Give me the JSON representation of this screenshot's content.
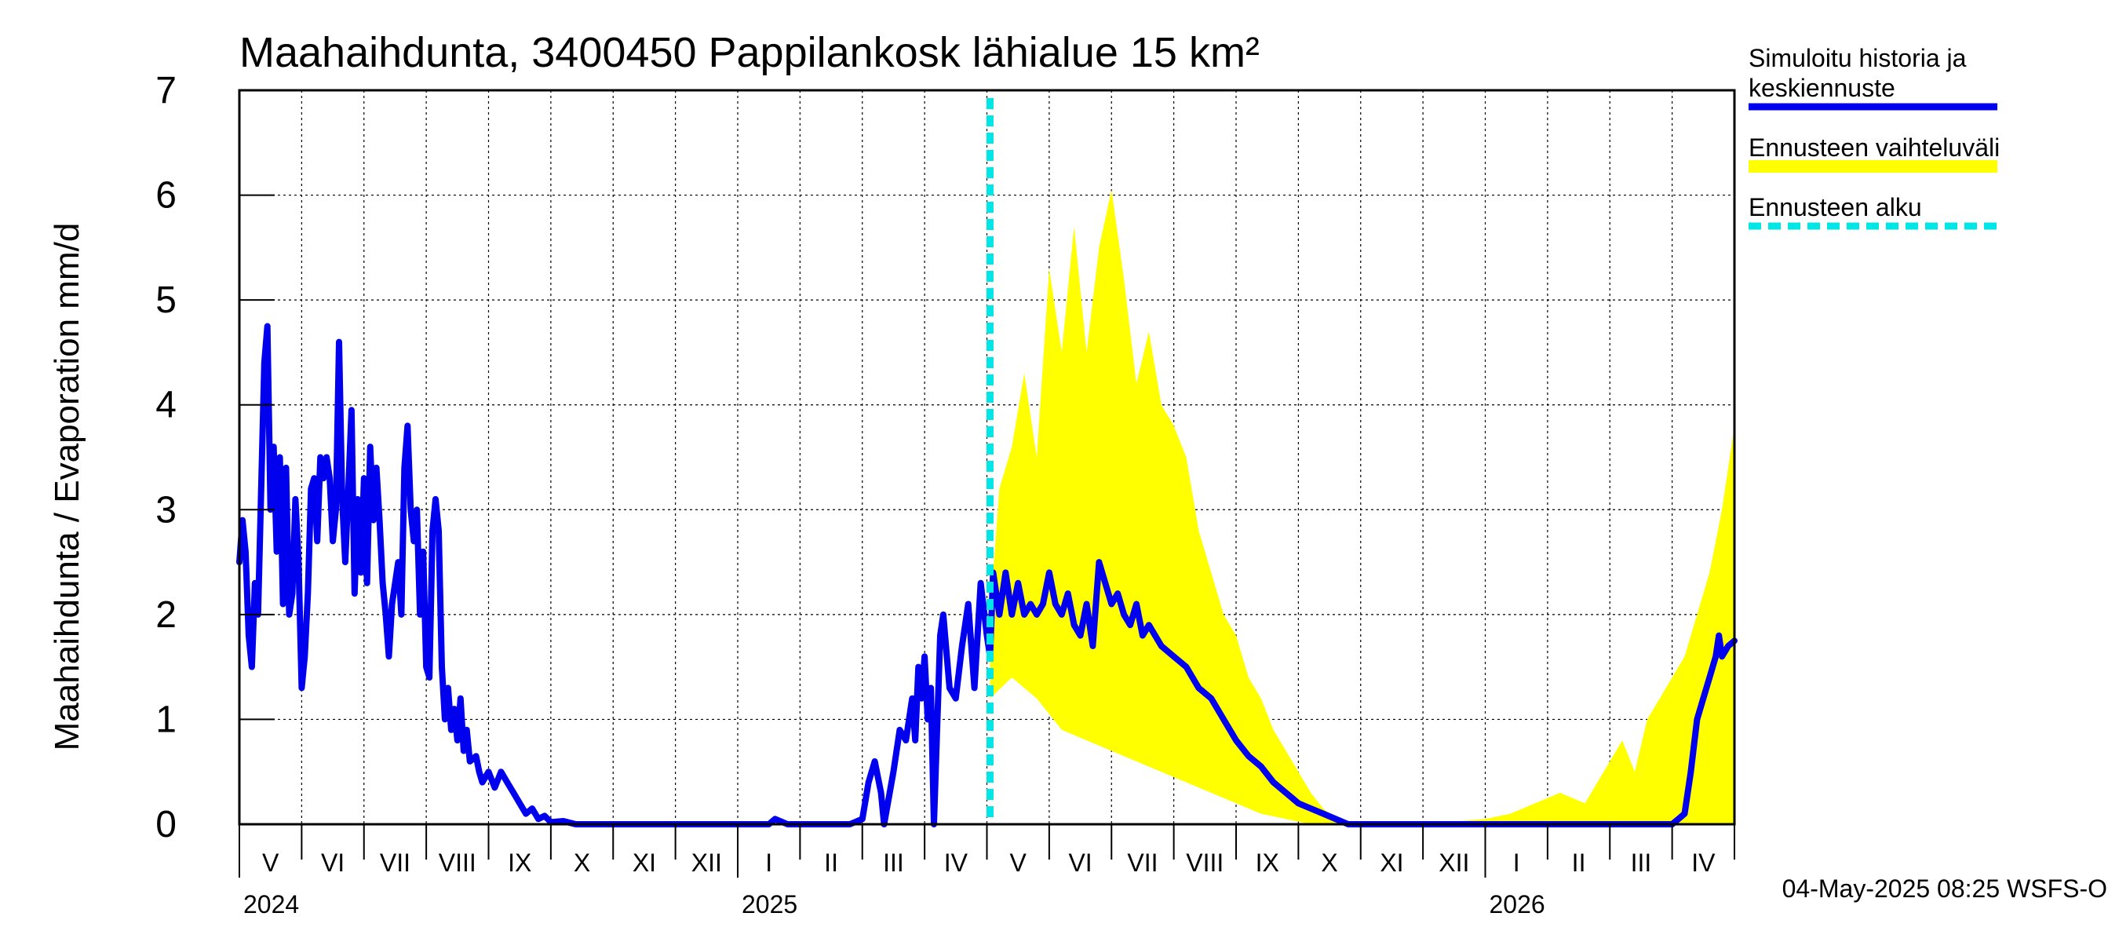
{
  "chart_data": {
    "type": "area",
    "title": "Maahaihdunta, 3400450 Pappilankosk lähialue 15 km²",
    "ylabel": "Maahaihdunta / Evaporation   mm/d",
    "ylim": [
      0,
      7
    ],
    "yticks": [
      "0",
      "1",
      "2",
      "3",
      "4",
      "5",
      "6",
      "7"
    ],
    "x_months": [
      "V",
      "VI",
      "VII",
      "VIII",
      "IX",
      "X",
      "XI",
      "XII",
      "I",
      "II",
      "III",
      "IV",
      "V",
      "VI",
      "VII",
      "VIII",
      "IX",
      "X",
      "XI",
      "XII",
      "I",
      "II",
      "III",
      "IV"
    ],
    "year_labels": [
      {
        "label": "2024",
        "month_index": 0
      },
      {
        "label": "2025",
        "month_index": 8
      },
      {
        "label": "2026",
        "month_index": 20
      }
    ],
    "forecast_start_month": 12.05,
    "legend": [
      {
        "label_lines": [
          "Simuloitu historia ja",
          "keskiennuste"
        ],
        "style": "line",
        "color": "#0000ee"
      },
      {
        "label_lines": [
          "Ennusteen vaihteluväli"
        ],
        "style": "band",
        "color": "#ffff00"
      },
      {
        "label_lines": [
          "Ennusteen alku"
        ],
        "style": "dashed",
        "color": "#00e5e5"
      }
    ],
    "series": [
      {
        "name": "Simuloitu historia ja keskiennuste",
        "color": "#0000ee",
        "points": [
          [
            0,
            2.5
          ],
          [
            0.05,
            2.9
          ],
          [
            0.1,
            2.6
          ],
          [
            0.15,
            1.8
          ],
          [
            0.2,
            1.5
          ],
          [
            0.25,
            2.3
          ],
          [
            0.3,
            2.0
          ],
          [
            0.35,
            3.2
          ],
          [
            0.4,
            4.4
          ],
          [
            0.45,
            4.75
          ],
          [
            0.5,
            3.0
          ],
          [
            0.55,
            3.6
          ],
          [
            0.6,
            2.6
          ],
          [
            0.65,
            3.5
          ],
          [
            0.7,
            2.1
          ],
          [
            0.75,
            3.4
          ],
          [
            0.8,
            2.0
          ],
          [
            0.85,
            2.2
          ],
          [
            0.9,
            3.1
          ],
          [
            0.95,
            2.5
          ],
          [
            1.0,
            1.3
          ],
          [
            1.05,
            1.6
          ],
          [
            1.1,
            2.2
          ],
          [
            1.15,
            3.2
          ],
          [
            1.2,
            3.3
          ],
          [
            1.25,
            2.7
          ],
          [
            1.3,
            3.5
          ],
          [
            1.35,
            3.3
          ],
          [
            1.4,
            3.5
          ],
          [
            1.45,
            3.3
          ],
          [
            1.5,
            2.7
          ],
          [
            1.55,
            3.0
          ],
          [
            1.6,
            4.6
          ],
          [
            1.65,
            3.1
          ],
          [
            1.7,
            2.5
          ],
          [
            1.75,
            3.2
          ],
          [
            1.8,
            3.95
          ],
          [
            1.85,
            2.2
          ],
          [
            1.9,
            3.1
          ],
          [
            1.95,
            2.4
          ],
          [
            2.0,
            3.3
          ],
          [
            2.05,
            2.3
          ],
          [
            2.1,
            3.6
          ],
          [
            2.15,
            2.9
          ],
          [
            2.2,
            3.4
          ],
          [
            2.25,
            2.9
          ],
          [
            2.3,
            2.3
          ],
          [
            2.35,
            2.0
          ],
          [
            2.4,
            1.6
          ],
          [
            2.45,
            2.1
          ],
          [
            2.55,
            2.5
          ],
          [
            2.6,
            2.0
          ],
          [
            2.65,
            3.4
          ],
          [
            2.7,
            3.8
          ],
          [
            2.75,
            3.0
          ],
          [
            2.8,
            2.7
          ],
          [
            2.85,
            3.0
          ],
          [
            2.9,
            2.0
          ],
          [
            2.95,
            2.6
          ],
          [
            3.0,
            1.5
          ],
          [
            3.05,
            1.4
          ],
          [
            3.1,
            2.8
          ],
          [
            3.15,
            3.1
          ],
          [
            3.2,
            2.8
          ],
          [
            3.25,
            1.5
          ],
          [
            3.3,
            1.0
          ],
          [
            3.35,
            1.3
          ],
          [
            3.4,
            0.9
          ],
          [
            3.45,
            1.1
          ],
          [
            3.5,
            0.8
          ],
          [
            3.55,
            1.2
          ],
          [
            3.6,
            0.7
          ],
          [
            3.65,
            0.9
          ],
          [
            3.7,
            0.6
          ],
          [
            3.8,
            0.65
          ],
          [
            3.85,
            0.5
          ],
          [
            3.9,
            0.4
          ],
          [
            4.0,
            0.5
          ],
          [
            4.1,
            0.35
          ],
          [
            4.2,
            0.5
          ],
          [
            4.3,
            0.4
          ],
          [
            4.4,
            0.3
          ],
          [
            4.5,
            0.2
          ],
          [
            4.6,
            0.1
          ],
          [
            4.7,
            0.15
          ],
          [
            4.8,
            0.05
          ],
          [
            4.9,
            0.08
          ],
          [
            5.0,
            0.02
          ],
          [
            5.2,
            0.03
          ],
          [
            5.4,
            0.0
          ],
          [
            6.0,
            0.0
          ],
          [
            7.0,
            0.0
          ],
          [
            8.5,
            0.0
          ],
          [
            8.6,
            0.05
          ],
          [
            8.8,
            0.0
          ],
          [
            9.8,
            0.0
          ],
          [
            10.0,
            0.05
          ],
          [
            10.1,
            0.4
          ],
          [
            10.2,
            0.6
          ],
          [
            10.3,
            0.3
          ],
          [
            10.35,
            0.0
          ],
          [
            10.5,
            0.5
          ],
          [
            10.6,
            0.9
          ],
          [
            10.7,
            0.8
          ],
          [
            10.8,
            1.2
          ],
          [
            10.85,
            0.8
          ],
          [
            10.9,
            1.5
          ],
          [
            10.95,
            1.2
          ],
          [
            11.0,
            1.6
          ],
          [
            11.05,
            1.0
          ],
          [
            11.1,
            1.3
          ],
          [
            11.15,
            0.0
          ],
          [
            11.25,
            1.8
          ],
          [
            11.3,
            2.0
          ],
          [
            11.4,
            1.3
          ],
          [
            11.5,
            1.2
          ],
          [
            11.6,
            1.7
          ],
          [
            11.7,
            2.1
          ],
          [
            11.8,
            1.3
          ],
          [
            11.9,
            2.3
          ],
          [
            12.0,
            1.8
          ],
          [
            12.05,
            1.6
          ],
          [
            12.1,
            2.4
          ],
          [
            12.2,
            2.0
          ],
          [
            12.3,
            2.4
          ],
          [
            12.4,
            2.0
          ],
          [
            12.5,
            2.3
          ],
          [
            12.6,
            2.0
          ],
          [
            12.7,
            2.1
          ],
          [
            12.8,
            2.0
          ],
          [
            12.9,
            2.1
          ],
          [
            13.0,
            2.4
          ],
          [
            13.1,
            2.1
          ],
          [
            13.2,
            2.0
          ],
          [
            13.3,
            2.2
          ],
          [
            13.4,
            1.9
          ],
          [
            13.5,
            1.8
          ],
          [
            13.6,
            2.1
          ],
          [
            13.7,
            1.7
          ],
          [
            13.8,
            2.5
          ],
          [
            13.9,
            2.3
          ],
          [
            14.0,
            2.1
          ],
          [
            14.1,
            2.2
          ],
          [
            14.2,
            2.0
          ],
          [
            14.3,
            1.9
          ],
          [
            14.4,
            2.1
          ],
          [
            14.5,
            1.8
          ],
          [
            14.6,
            1.9
          ],
          [
            14.8,
            1.7
          ],
          [
            15.0,
            1.6
          ],
          [
            15.2,
            1.5
          ],
          [
            15.4,
            1.3
          ],
          [
            15.6,
            1.2
          ],
          [
            15.8,
            1.0
          ],
          [
            16.0,
            0.8
          ],
          [
            16.2,
            0.65
          ],
          [
            16.4,
            0.55
          ],
          [
            16.6,
            0.4
          ],
          [
            16.8,
            0.3
          ],
          [
            17.0,
            0.2
          ],
          [
            17.2,
            0.15
          ],
          [
            17.4,
            0.1
          ],
          [
            17.6,
            0.05
          ],
          [
            17.8,
            0.0
          ],
          [
            19.0,
            0.0
          ],
          [
            20.0,
            0.0
          ],
          [
            22.0,
            0.0
          ],
          [
            23.0,
            0.0
          ],
          [
            23.1,
            0.05
          ],
          [
            23.2,
            0.1
          ],
          [
            23.3,
            0.5
          ],
          [
            23.4,
            1.0
          ],
          [
            23.5,
            1.2
          ],
          [
            23.6,
            1.4
          ],
          [
            23.7,
            1.6
          ],
          [
            23.75,
            1.8
          ],
          [
            23.8,
            1.6
          ],
          [
            23.9,
            1.7
          ],
          [
            24.0,
            1.75
          ]
        ]
      },
      {
        "name": "Ennusteen vaihteluväli",
        "color": "#ffff00",
        "upper": [
          [
            12.05,
            2.0
          ],
          [
            12.2,
            3.2
          ],
          [
            12.4,
            3.6
          ],
          [
            12.6,
            4.3
          ],
          [
            12.8,
            3.5
          ],
          [
            13.0,
            5.3
          ],
          [
            13.2,
            4.5
          ],
          [
            13.4,
            5.7
          ],
          [
            13.6,
            4.5
          ],
          [
            13.8,
            5.5
          ],
          [
            14.0,
            6.05
          ],
          [
            14.2,
            5.2
          ],
          [
            14.4,
            4.2
          ],
          [
            14.6,
            4.7
          ],
          [
            14.8,
            4.0
          ],
          [
            15.0,
            3.8
          ],
          [
            15.2,
            3.5
          ],
          [
            15.4,
            2.8
          ],
          [
            15.6,
            2.4
          ],
          [
            15.8,
            2.0
          ],
          [
            16.0,
            1.8
          ],
          [
            16.2,
            1.4
          ],
          [
            16.4,
            1.2
          ],
          [
            16.6,
            0.9
          ],
          [
            16.8,
            0.7
          ],
          [
            17.0,
            0.5
          ],
          [
            17.2,
            0.3
          ],
          [
            17.4,
            0.15
          ],
          [
            17.6,
            0.05
          ],
          [
            18.0,
            0.0
          ],
          [
            19.0,
            0.0
          ],
          [
            20.0,
            0.05
          ],
          [
            20.4,
            0.1
          ],
          [
            20.8,
            0.2
          ],
          [
            21.2,
            0.3
          ],
          [
            21.6,
            0.2
          ],
          [
            22.0,
            0.6
          ],
          [
            22.2,
            0.8
          ],
          [
            22.4,
            0.5
          ],
          [
            22.6,
            1.0
          ],
          [
            22.8,
            1.2
          ],
          [
            23.0,
            1.4
          ],
          [
            23.2,
            1.6
          ],
          [
            23.4,
            2.0
          ],
          [
            23.6,
            2.4
          ],
          [
            23.8,
            3.0
          ],
          [
            24.0,
            3.8
          ]
        ],
        "lower": [
          [
            12.05,
            1.2
          ],
          [
            12.4,
            1.4
          ],
          [
            12.8,
            1.2
          ],
          [
            13.2,
            0.9
          ],
          [
            13.6,
            0.8
          ],
          [
            14.0,
            0.7
          ],
          [
            14.4,
            0.6
          ],
          [
            14.8,
            0.5
          ],
          [
            15.2,
            0.4
          ],
          [
            15.6,
            0.3
          ],
          [
            16.0,
            0.2
          ],
          [
            16.4,
            0.1
          ],
          [
            16.8,
            0.05
          ],
          [
            17.2,
            0.0
          ],
          [
            24.0,
            0.0
          ]
        ]
      }
    ]
  },
  "footer": {
    "timestamp": "04-May-2025 08:25 WSFS-O"
  }
}
